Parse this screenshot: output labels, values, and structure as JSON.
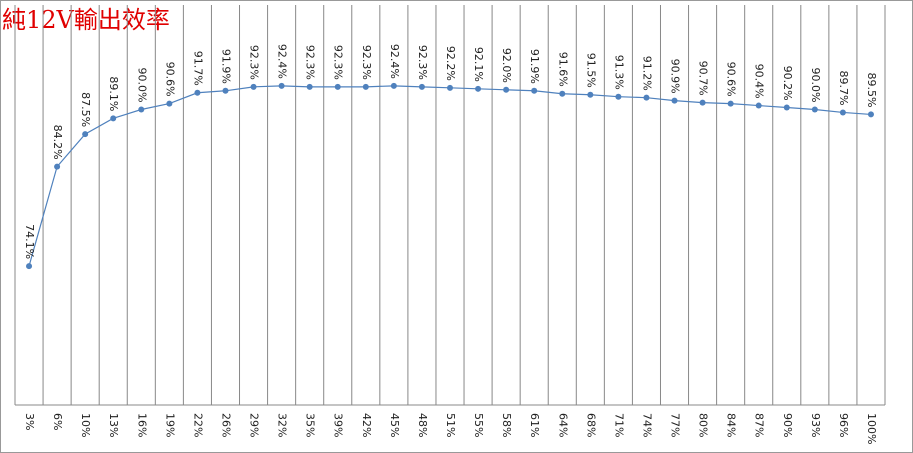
{
  "chart_data": {
    "type": "line",
    "title": "純12V輸出效率",
    "categories": [
      "3%",
      "6%",
      "10%",
      "13%",
      "16%",
      "19%",
      "22%",
      "26%",
      "29%",
      "32%",
      "35%",
      "39%",
      "42%",
      "45%",
      "48%",
      "51%",
      "55%",
      "58%",
      "61%",
      "64%",
      "68%",
      "71%",
      "74%",
      "77%",
      "80%",
      "84%",
      "87%",
      "90%",
      "93%",
      "96%",
      "100%"
    ],
    "values": [
      74.1,
      84.2,
      87.5,
      89.1,
      90.0,
      90.6,
      91.7,
      91.9,
      92.3,
      92.4,
      92.3,
      92.3,
      92.3,
      92.4,
      92.3,
      92.2,
      92.1,
      92.0,
      91.9,
      91.6,
      91.5,
      91.3,
      91.2,
      90.9,
      90.7,
      90.6,
      90.4,
      90.2,
      90.0,
      89.7,
      89.5
    ],
    "value_labels": [
      "74.1%",
      "84.2%",
      "87.5%",
      "89.1%",
      "90.0%",
      "90.6%",
      "91.7%",
      "91.9%",
      "92.3%",
      "92.4%",
      "92.3%",
      "92.3%",
      "92.3%",
      "92.4%",
      "92.3%",
      "92.2%",
      "92.1%",
      "92.0%",
      "91.9%",
      "91.6%",
      "91.5%",
      "91.3%",
      "91.2%",
      "90.9%",
      "90.7%",
      "90.6%",
      "90.4%",
      "90.2%",
      "90.0%",
      "89.7%",
      "89.5%"
    ],
    "color": "#4f81bd",
    "ylim": [
      60,
      100
    ]
  }
}
